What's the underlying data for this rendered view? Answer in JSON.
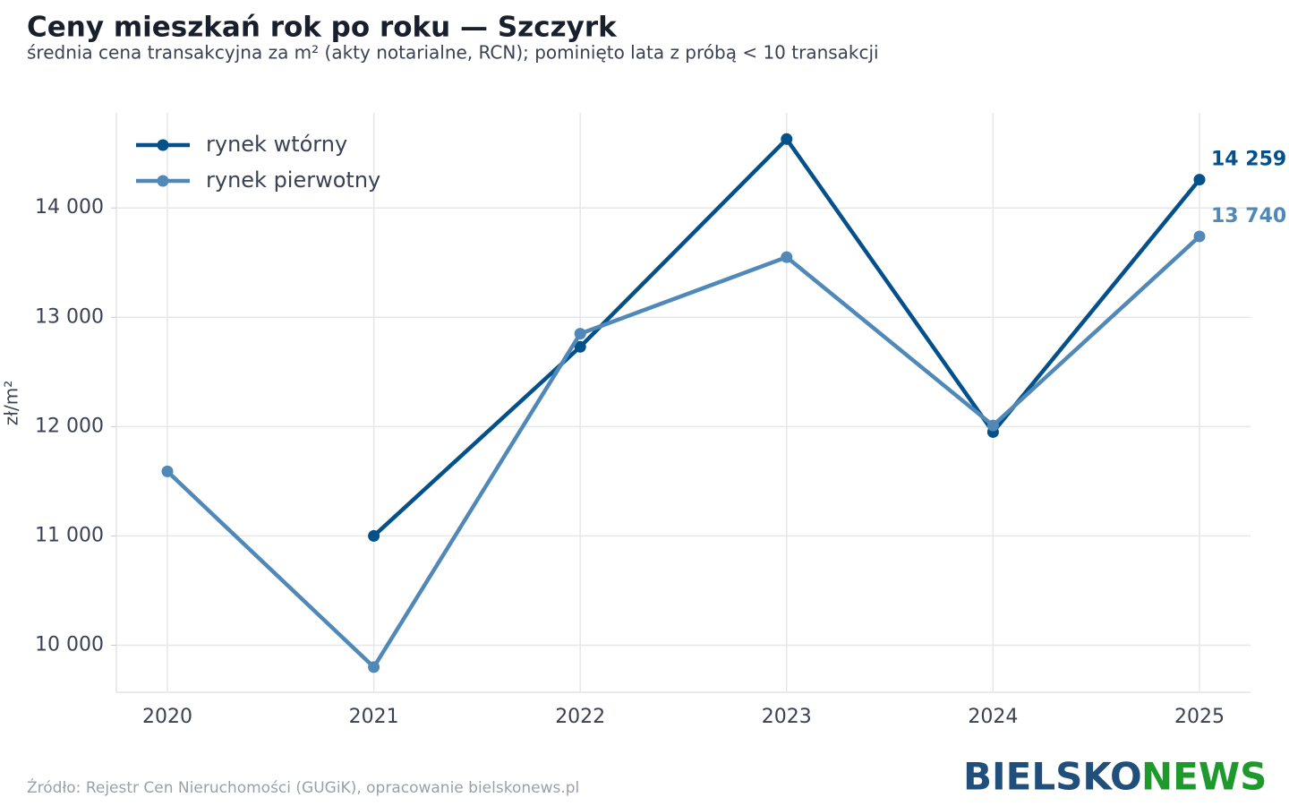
{
  "chart_data": {
    "type": "line",
    "title": "Ceny mieszkań rok po roku — Szczyrk",
    "subtitle": "średnia cena transakcyjna za m² (akty notarialne, RCN); pominięto lata z próbą < 10 transakcji",
    "y_label": "zł/m²",
    "categories": [
      "2020",
      "2021",
      "2022",
      "2023",
      "2024",
      "2025"
    ],
    "series": [
      {
        "name": "rynek wtórny",
        "color": "#03508a",
        "values": [
          null,
          11000,
          12730,
          14630,
          11950,
          14259
        ],
        "value_labels": [
          null,
          null,
          null,
          null,
          null,
          "14 259"
        ]
      },
      {
        "name": "rynek pierwotny",
        "color": "#5089b8",
        "values": [
          11590,
          9800,
          12850,
          13550,
          12010,
          13740
        ],
        "value_labels": [
          null,
          null,
          null,
          null,
          null,
          "13 740"
        ]
      }
    ],
    "ylim": [
      9570,
      14870
    ],
    "yticks": [
      {
        "value": 10000,
        "label": "10 000"
      },
      {
        "value": 11000,
        "label": "11 000"
      },
      {
        "value": 12000,
        "label": "12 000"
      },
      {
        "value": 13000,
        "label": "13 000"
      },
      {
        "value": 14000,
        "label": "14 000"
      }
    ],
    "grid": true,
    "legend": "top-left",
    "source": "Źródło: Rejestr Cen Nieruchomości (GUGiK), opracowanie bielskonews.pl",
    "logo": [
      "BIELSKO",
      "NEWS"
    ]
  }
}
